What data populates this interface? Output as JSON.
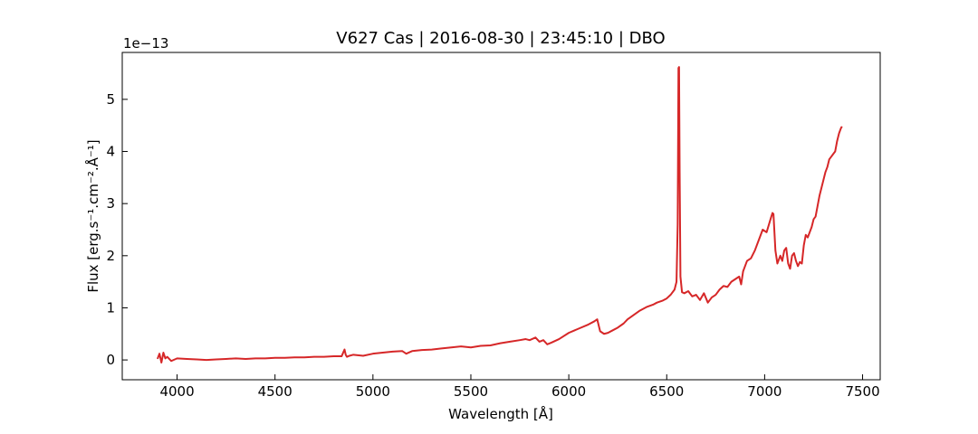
{
  "chart_data": {
    "type": "line",
    "title": "V627 Cas | 2016-08-30 | 23:45:10 | DBO",
    "xlabel": "Wavelength [Å]",
    "ylabel": "Flux [erg.s⁻¹.cm⁻².Å⁻¹]",
    "y_offset_label": "1e−13",
    "y_scale": 1e-13,
    "xlim": [
      3720,
      7590
    ],
    "ylim": [
      -0.38,
      5.9
    ],
    "x_ticks": [
      4000,
      4500,
      5000,
      5500,
      6000,
      6500,
      7000,
      7500
    ],
    "x_tick_labels": [
      "4000",
      "4500",
      "5000",
      "5500",
      "6000",
      "6500",
      "7000",
      "7500"
    ],
    "y_ticks": [
      0,
      1,
      2,
      3,
      4,
      5
    ],
    "y_tick_labels": [
      "0",
      "1",
      "2",
      "3",
      "4",
      "5"
    ],
    "grid": false,
    "series": [
      {
        "color": "#d62728",
        "x": [
          3900,
          3910,
          3920,
          3930,
          3940,
          3950,
          3970,
          4000,
          4050,
          4100,
          4150,
          4200,
          4250,
          4300,
          4350,
          4400,
          4450,
          4500,
          4550,
          4600,
          4650,
          4700,
          4750,
          4800,
          4840,
          4855,
          4861,
          4867,
          4880,
          4900,
          4950,
          5000,
          5050,
          5100,
          5150,
          5170,
          5200,
          5250,
          5300,
          5350,
          5400,
          5450,
          5500,
          5550,
          5600,
          5650,
          5700,
          5750,
          5780,
          5800,
          5830,
          5850,
          5870,
          5890,
          5910,
          5950,
          6000,
          6050,
          6100,
          6130,
          6145,
          6160,
          6180,
          6200,
          6220,
          6250,
          6280,
          6300,
          6330,
          6360,
          6400,
          6430,
          6450,
          6480,
          6500,
          6520,
          6540,
          6550,
          6556,
          6560,
          6563,
          6566,
          6570,
          6578,
          6590,
          6610,
          6630,
          6650,
          6670,
          6690,
          6710,
          6730,
          6750,
          6770,
          6790,
          6810,
          6830,
          6850,
          6870,
          6880,
          6890,
          6910,
          6930,
          6950,
          6970,
          6990,
          7010,
          7030,
          7040,
          7045,
          7055,
          7065,
          7080,
          7090,
          7100,
          7110,
          7120,
          7130,
          7140,
          7150,
          7160,
          7170,
          7180,
          7190,
          7200,
          7210,
          7220,
          7230,
          7240,
          7250,
          7260,
          7270,
          7280,
          7290,
          7300,
          7310,
          7320,
          7330,
          7340,
          7350,
          7360,
          7370,
          7380,
          7390,
          7395
        ],
        "y": [
          0.02,
          0.12,
          -0.05,
          0.14,
          0.03,
          0.06,
          -0.02,
          0.03,
          0.02,
          0.01,
          0.0,
          0.01,
          0.02,
          0.03,
          0.02,
          0.03,
          0.03,
          0.04,
          0.04,
          0.05,
          0.05,
          0.06,
          0.06,
          0.07,
          0.07,
          0.2,
          0.1,
          0.06,
          0.08,
          0.1,
          0.08,
          0.12,
          0.14,
          0.16,
          0.17,
          0.12,
          0.17,
          0.19,
          0.2,
          0.22,
          0.24,
          0.26,
          0.24,
          0.27,
          0.28,
          0.32,
          0.35,
          0.38,
          0.4,
          0.38,
          0.43,
          0.35,
          0.38,
          0.3,
          0.33,
          0.4,
          0.52,
          0.6,
          0.68,
          0.74,
          0.78,
          0.55,
          0.5,
          0.52,
          0.56,
          0.62,
          0.7,
          0.78,
          0.86,
          0.94,
          1.02,
          1.06,
          1.1,
          1.14,
          1.18,
          1.25,
          1.35,
          1.5,
          2.6,
          5.6,
          5.62,
          3.6,
          1.6,
          1.3,
          1.28,
          1.32,
          1.22,
          1.25,
          1.15,
          1.28,
          1.1,
          1.2,
          1.25,
          1.35,
          1.42,
          1.4,
          1.5,
          1.55,
          1.6,
          1.45,
          1.7,
          1.9,
          1.95,
          2.1,
          2.3,
          2.5,
          2.45,
          2.7,
          2.82,
          2.8,
          2.1,
          1.85,
          2.0,
          1.9,
          2.1,
          2.15,
          1.85,
          1.75,
          2.0,
          2.05,
          1.9,
          1.8,
          1.88,
          1.85,
          2.2,
          2.4,
          2.35,
          2.45,
          2.55,
          2.7,
          2.75,
          2.95,
          3.15,
          3.3,
          3.45,
          3.6,
          3.7,
          3.85,
          3.9,
          3.95,
          4.0,
          4.2,
          4.35,
          4.45,
          4.48
        ]
      }
    ]
  }
}
